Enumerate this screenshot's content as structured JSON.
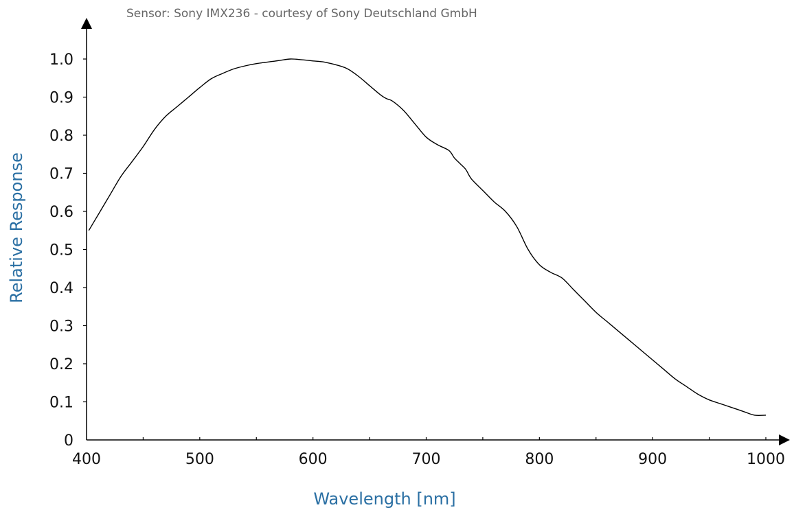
{
  "chart_data": {
    "type": "line",
    "title": "",
    "subtitle": "Sensor: Sony IMX236 - courtesy of Sony Deutschland GmbH",
    "xlabel": "Wavelength [nm]",
    "ylabel": "Relative Response",
    "xlim": [
      400,
      1000
    ],
    "ylim": [
      0,
      1.0
    ],
    "x_ticks": [
      "400",
      "500",
      "600",
      "700",
      "800",
      "900",
      "1000"
    ],
    "y_ticks": [
      "0",
      "0.1",
      "0.2",
      "0.3",
      "0.4",
      "0.5",
      "0.6",
      "0.7",
      "0.8",
      "0.9",
      "1.0"
    ],
    "grid": false,
    "legend": "none",
    "colors": {
      "line": "#000000",
      "axis": "#000000",
      "axis_title": "#2a6fa3",
      "subtitle": "#666666"
    },
    "series": [
      {
        "x": [
          402,
          410,
          420,
          430,
          440,
          450,
          460,
          470,
          480,
          490,
          500,
          510,
          520,
          530,
          540,
          550,
          560,
          570,
          580,
          590,
          600,
          610,
          620,
          630,
          640,
          650,
          660,
          665,
          670,
          680,
          690,
          700,
          710,
          720,
          725,
          730,
          735,
          740,
          750,
          760,
          770,
          780,
          790,
          800,
          810,
          820,
          830,
          840,
          850,
          860,
          870,
          880,
          890,
          900,
          910,
          920,
          930,
          940,
          950,
          960,
          970,
          980,
          990,
          1000
        ],
        "y": [
          0.55,
          0.59,
          0.64,
          0.69,
          0.73,
          0.77,
          0.815,
          0.85,
          0.875,
          0.9,
          0.925,
          0.948,
          0.962,
          0.974,
          0.982,
          0.988,
          0.992,
          0.996,
          1.0,
          0.998,
          0.995,
          0.992,
          0.985,
          0.975,
          0.955,
          0.93,
          0.905,
          0.896,
          0.89,
          0.865,
          0.83,
          0.795,
          0.775,
          0.76,
          0.74,
          0.725,
          0.71,
          0.685,
          0.655,
          0.625,
          0.6,
          0.56,
          0.5,
          0.46,
          0.44,
          0.425,
          0.395,
          0.365,
          0.335,
          0.31,
          0.285,
          0.26,
          0.235,
          0.21,
          0.185,
          0.16,
          0.14,
          0.12,
          0.105,
          0.095,
          0.085,
          0.075,
          0.065,
          0.065
        ]
      }
    ]
  }
}
